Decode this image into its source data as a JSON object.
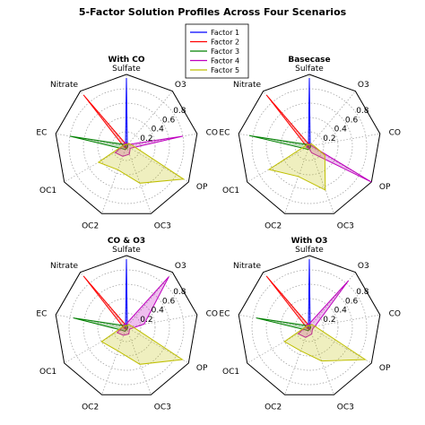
{
  "title": "5-Factor Solution Profiles Across Four Scenarios",
  "legend": {
    "placement": "top-center",
    "entries": [
      {
        "name": "Factor 1",
        "color": "#0000ff"
      },
      {
        "name": "Factor 2",
        "color": "#ff0000"
      },
      {
        "name": "Factor 3",
        "color": "#008000"
      },
      {
        "name": "Factor 4",
        "color": "#bf00bf"
      },
      {
        "name": "Factor 5",
        "color": "#bfbf00"
      }
    ]
  },
  "chart_data": [
    {
      "type": "radar",
      "title": "With CO",
      "axes": [
        "Sulfate",
        "O3",
        "CO",
        "OP",
        "OC3",
        "OC2",
        "OC1",
        "EC",
        "Nitrate"
      ],
      "rticks": [
        "0.2",
        "0.4",
        "0.6",
        "0.8"
      ],
      "rlim": [
        0,
        1
      ],
      "grid": true,
      "series": [
        {
          "name": "Factor 1",
          "values": [
            0.95,
            0.02,
            0.02,
            0.02,
            0.02,
            0.02,
            0.02,
            0.02,
            0.02
          ]
        },
        {
          "name": "Factor 2",
          "values": [
            0.02,
            0.02,
            0.02,
            0.02,
            0.02,
            0.03,
            0.03,
            0.05,
            0.93
          ]
        },
        {
          "name": "Factor 3",
          "values": [
            0.03,
            0.02,
            0.02,
            0.02,
            0.03,
            0.05,
            0.07,
            0.8,
            0.03
          ]
        },
        {
          "name": "Factor 4",
          "values": [
            0.05,
            0.03,
            0.8,
            0.06,
            0.12,
            0.15,
            0.18,
            0.05,
            0.05
          ]
        },
        {
          "name": "Factor 5",
          "values": [
            0.02,
            0.05,
            0.08,
            0.92,
            0.55,
            0.35,
            0.45,
            0.05,
            0.03
          ]
        }
      ]
    },
    {
      "type": "radar",
      "title": "Basecase",
      "axes": [
        "Sulfate",
        "O3",
        "CO",
        "OP",
        "OC3",
        "OC2",
        "OC1",
        "EC",
        "Nitrate"
      ],
      "rticks": [
        "0.2",
        "0.4",
        "0.6",
        "0.8"
      ],
      "rlim": [
        0,
        1
      ],
      "grid": true,
      "series": [
        {
          "name": "Factor 1",
          "values": [
            0.95,
            0.02,
            0.02,
            0.02,
            0.02,
            0.02,
            0.02,
            0.02,
            0.02
          ]
        },
        {
          "name": "Factor 2",
          "values": [
            0.02,
            0.02,
            0.02,
            0.02,
            0.02,
            0.03,
            0.03,
            0.05,
            0.93
          ]
        },
        {
          "name": "Factor 3",
          "values": [
            0.03,
            0.02,
            0.02,
            0.02,
            0.03,
            0.05,
            0.07,
            0.85,
            0.03
          ]
        },
        {
          "name": "Factor 4",
          "values": [
            0.04,
            0.03,
            0.03,
            1.0,
            0.1,
            0.03,
            0.04,
            0.03,
            0.03
          ]
        },
        {
          "name": "Factor 5",
          "values": [
            0.02,
            0.04,
            0.06,
            0.25,
            0.65,
            0.45,
            0.65,
            0.05,
            0.03
          ]
        }
      ]
    },
    {
      "type": "radar",
      "title": "CO & O3",
      "axes": [
        "Sulfate",
        "O3",
        "CO",
        "OP",
        "OC3",
        "OC2",
        "OC1",
        "EC",
        "Nitrate"
      ],
      "rticks": [
        "0.2",
        "0.4",
        "0.6",
        "0.8"
      ],
      "rlim": [
        0,
        1
      ],
      "grid": true,
      "series": [
        {
          "name": "Factor 1",
          "values": [
            0.95,
            0.02,
            0.02,
            0.02,
            0.02,
            0.02,
            0.02,
            0.02,
            0.02
          ]
        },
        {
          "name": "Factor 2",
          "values": [
            0.02,
            0.02,
            0.02,
            0.02,
            0.02,
            0.03,
            0.03,
            0.05,
            0.93
          ]
        },
        {
          "name": "Factor 3",
          "values": [
            0.03,
            0.02,
            0.02,
            0.02,
            0.03,
            0.06,
            0.08,
            0.75,
            0.03
          ]
        },
        {
          "name": "Factor 4",
          "values": [
            0.05,
            0.92,
            0.25,
            0.05,
            0.1,
            0.12,
            0.15,
            0.05,
            0.05
          ]
        },
        {
          "name": "Factor 5",
          "values": [
            0.02,
            0.05,
            0.08,
            0.9,
            0.55,
            0.35,
            0.4,
            0.05,
            0.03
          ]
        }
      ]
    },
    {
      "type": "radar",
      "title": "With O3",
      "axes": [
        "Sulfate",
        "O3",
        "CO",
        "OP",
        "OC3",
        "OC2",
        "OC1",
        "EC",
        "Nitrate"
      ],
      "rticks": [
        "0.2",
        "0.4",
        "0.6",
        "0.8"
      ],
      "rlim": [
        0,
        1
      ],
      "grid": true,
      "series": [
        {
          "name": "Factor 1",
          "values": [
            0.95,
            0.02,
            0.02,
            0.02,
            0.02,
            0.02,
            0.02,
            0.02,
            0.02
          ]
        },
        {
          "name": "Factor 2",
          "values": [
            0.02,
            0.02,
            0.02,
            0.02,
            0.02,
            0.03,
            0.03,
            0.05,
            0.93
          ]
        },
        {
          "name": "Factor 3",
          "values": [
            0.03,
            0.02,
            0.02,
            0.02,
            0.03,
            0.05,
            0.07,
            0.75,
            0.03
          ]
        },
        {
          "name": "Factor 4",
          "values": [
            0.05,
            0.85,
            0.08,
            0.05,
            0.1,
            0.15,
            0.18,
            0.05,
            0.05
          ]
        },
        {
          "name": "Factor 5",
          "values": [
            0.02,
            0.05,
            0.08,
            0.9,
            0.5,
            0.35,
            0.4,
            0.05,
            0.03
          ]
        }
      ]
    }
  ]
}
